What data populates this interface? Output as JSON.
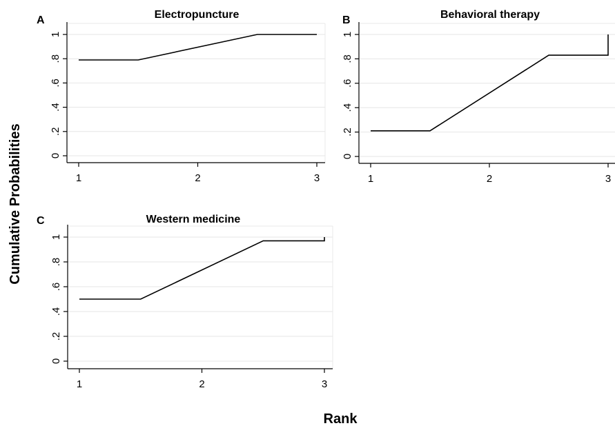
{
  "figure": {
    "ylabel": "Cumulative Probabilities",
    "xlabel": "Rank"
  },
  "chart_data": [
    {
      "type": "line",
      "panel_letter": "A",
      "title": "Electropuncture",
      "x_ticks": [
        "1",
        "2",
        "3"
      ],
      "y_ticks": [
        "0",
        ".2",
        ".4",
        ".6",
        ".8",
        "1"
      ],
      "xlim": [
        1,
        3
      ],
      "ylim": [
        0,
        1
      ],
      "grid": true,
      "series": [
        {
          "x": [
            1,
            1.5,
            2.5,
            3
          ],
          "y": [
            0.79,
            0.79,
            1.0,
            1.0
          ]
        }
      ]
    },
    {
      "type": "line",
      "panel_letter": "B",
      "title": "Behavioral therapy",
      "x_ticks": [
        "1",
        "2",
        "3"
      ],
      "y_ticks": [
        "0",
        ".2",
        ".4",
        ".6",
        ".8",
        "1"
      ],
      "xlim": [
        1,
        3
      ],
      "ylim": [
        0,
        1
      ],
      "grid": true,
      "series": [
        {
          "x": [
            1,
            1.5,
            2.5,
            3,
            3
          ],
          "y": [
            0.21,
            0.21,
            0.83,
            0.83,
            1.0
          ]
        }
      ]
    },
    {
      "type": "line",
      "panel_letter": "C",
      "title": "Western medicine",
      "x_ticks": [
        "1",
        "2",
        "3"
      ],
      "y_ticks": [
        "0",
        ".2",
        ".4",
        ".6",
        ".8",
        "1"
      ],
      "xlim": [
        1,
        3
      ],
      "ylim": [
        0,
        1
      ],
      "grid": true,
      "series": [
        {
          "x": [
            1,
            1.5,
            2.5,
            3,
            3
          ],
          "y": [
            0.5,
            0.5,
            0.97,
            0.97,
            1.0
          ]
        }
      ]
    }
  ]
}
